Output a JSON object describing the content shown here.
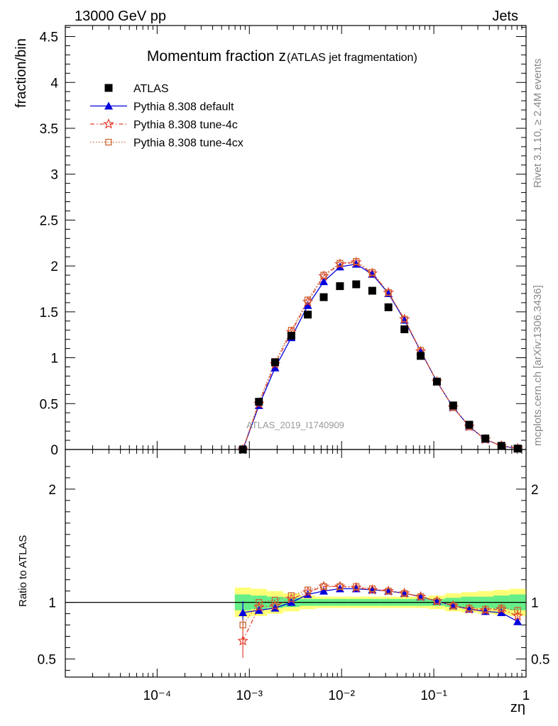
{
  "header": {
    "left": "13000 GeV pp",
    "right": "Jets"
  },
  "side_labels": {
    "rivet": "Rivet 3.1.10, ≥ 2.4M events",
    "source": "mcplots.cern.ch [arXiv:1306.3436]"
  },
  "chart_data": {
    "type": "scatter",
    "title_main": "Momentum fraction z",
    "title_sub": "(ATLAS jet fragmentation)",
    "xlabel": "zη",
    "ylabel_main": "fraction/bin",
    "ylabel_ratio": "Ratio to ATLAS",
    "x_scale": "log",
    "xlim": [
      1.01e-05,
      1
    ],
    "ylim_main": [
      0,
      4.62
    ],
    "ylim_ratio": [
      0.34,
      2.35
    ],
    "x_ticks": [
      "10⁻⁴",
      "10⁻³",
      "10⁻²",
      "10⁻¹",
      "1"
    ],
    "y_ticks_main": [
      "0",
      "0.5",
      "1",
      "1.5",
      "2",
      "2.5",
      "3",
      "3.5",
      "4",
      "4.5"
    ],
    "y_ticks_ratio": [
      "0.5",
      "1",
      "2"
    ],
    "analysis_label": "ATLAS_2019_I1740909",
    "legend_position": "top-left",
    "x": [
      0.00085,
      0.00127,
      0.0019,
      0.00285,
      0.0043,
      0.0064,
      0.0096,
      0.0144,
      0.0215,
      0.0322,
      0.048,
      0.072,
      0.108,
      0.162,
      0.242,
      0.362,
      0.54,
      0.81
    ],
    "series": [
      {
        "name": "ATLAS",
        "color": "#000000",
        "marker": "filled-square",
        "values": [
          0.0,
          0.52,
          0.95,
          1.24,
          1.47,
          1.66,
          1.78,
          1.8,
          1.73,
          1.55,
          1.31,
          1.02,
          0.74,
          0.48,
          0.27,
          0.12,
          0.04,
          0.01
        ],
        "ratio_band_inner": [
          0.07,
          0.06,
          0.05,
          0.04,
          0.03,
          0.03,
          0.03,
          0.03,
          0.03,
          0.03,
          0.03,
          0.03,
          0.03,
          0.04,
          0.05,
          0.05,
          0.06,
          0.07
        ],
        "ratio_band_outer": [
          0.13,
          0.12,
          0.1,
          0.08,
          0.06,
          0.05,
          0.05,
          0.05,
          0.05,
          0.05,
          0.05,
          0.05,
          0.06,
          0.08,
          0.09,
          0.1,
          0.11,
          0.12
        ]
      },
      {
        "name": "Pythia 8.308 default",
        "color": "#0000dd",
        "marker": "filled-triangle",
        "line": "solid",
        "values": [
          0.0,
          0.48,
          0.89,
          1.22,
          1.57,
          1.83,
          1.99,
          2.02,
          1.91,
          1.7,
          1.41,
          1.07,
          0.74,
          0.46,
          0.25,
          0.11,
          0.04,
          0.01
        ],
        "ratio": [
          0.91,
          0.93,
          0.95,
          1.0,
          1.07,
          1.1,
          1.12,
          1.12,
          1.11,
          1.1,
          1.08,
          1.05,
          1.01,
          0.97,
          0.94,
          0.92,
          0.91,
          0.83
        ],
        "ratio_err": [
          0.1,
          0.02,
          0.01,
          0.01,
          0.01,
          0.01,
          0.01,
          0.01,
          0.01,
          0.01,
          0.01,
          0.01,
          0.01,
          0.01,
          0.01,
          0.01,
          0.015,
          0.03
        ]
      },
      {
        "name": "Pythia 8.308 tune-4c",
        "color": "#e2412f",
        "marker": "open-star",
        "line": "dash-dot",
        "values": [
          0.0,
          0.5,
          0.93,
          1.28,
          1.61,
          1.89,
          2.02,
          2.04,
          1.92,
          1.71,
          1.42,
          1.07,
          0.74,
          0.46,
          0.25,
          0.11,
          0.04,
          0.01
        ],
        "ratio": [
          0.66,
          0.96,
          0.97,
          1.03,
          1.09,
          1.14,
          1.14,
          1.13,
          1.11,
          1.1,
          1.08,
          1.05,
          1.01,
          0.97,
          0.94,
          0.93,
          0.94,
          0.88
        ],
        "ratio_err": [
          0.15,
          0.02,
          0.01,
          0.01,
          0.01,
          0.01,
          0.01,
          0.01,
          0.01,
          0.01,
          0.01,
          0.01,
          0.01,
          0.01,
          0.01,
          0.01,
          0.015,
          0.03
        ]
      },
      {
        "name": "Pythia 8.308 tune-4cx",
        "color": "#cc6633",
        "marker": "open-square",
        "line": "dotted",
        "values": [
          0.0,
          0.52,
          0.96,
          1.3,
          1.63,
          1.9,
          2.03,
          2.05,
          1.93,
          1.71,
          1.42,
          1.08,
          0.74,
          0.46,
          0.25,
          0.11,
          0.04,
          0.01
        ],
        "ratio": [
          0.8,
          1.0,
          1.02,
          1.06,
          1.11,
          1.14,
          1.14,
          1.14,
          1.12,
          1.1,
          1.08,
          1.05,
          1.01,
          0.97,
          0.95,
          0.94,
          0.95,
          0.93
        ],
        "ratio_err": [
          0.05,
          0.01,
          0.01,
          0.01,
          0.01,
          0.01,
          0.01,
          0.01,
          0.01,
          0.01,
          0.01,
          0.01,
          0.01,
          0.01,
          0.01,
          0.01,
          0.015,
          0.03
        ]
      }
    ]
  }
}
